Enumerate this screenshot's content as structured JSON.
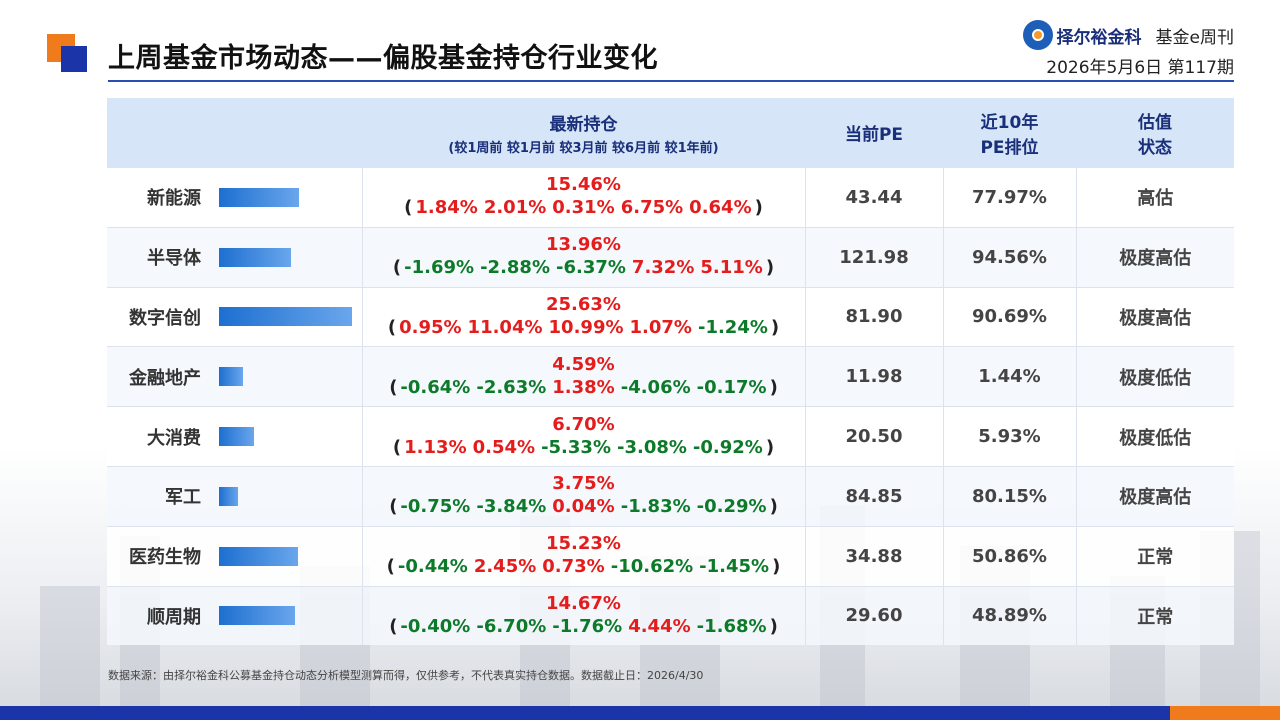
{
  "header": {
    "title": "上周基金市场动态——偏股基金持仓行业变化",
    "brand_name": "择尔裕金科",
    "brand_issue": "基金e周刊",
    "date_issue": "2026年5月6日  第117期",
    "logo_icon": "brand-circle-icon",
    "accent_orange": "#f07b1c",
    "accent_blue": "#1b34a8"
  },
  "table": {
    "headers": {
      "holding": "最新持仓",
      "holding_sub": "(较1周前  较1月前  较3月前  较6月前 较1年前)",
      "pe": "当前PE",
      "rank_l1": "近10年",
      "rank_l2": "PE排位",
      "status_l1": "估值",
      "status_l2": "状态"
    },
    "rows": [
      {
        "name": "新能源",
        "bar": 15.46,
        "holding": "15.46%",
        "changes": [
          "1.84%",
          "2.01%",
          "0.31%",
          "6.75%",
          "0.64%"
        ],
        "pe": "43.44",
        "rank": "77.97%",
        "status": "高估",
        "status_class": "st-hi"
      },
      {
        "name": "半导体",
        "bar": 13.96,
        "holding": "13.96%",
        "changes": [
          "-1.69%",
          "-2.88%",
          "-6.37%",
          "7.32%",
          "5.11%"
        ],
        "pe": "121.98",
        "rank": "94.56%",
        "status": "极度高估",
        "status_class": "st-xhi"
      },
      {
        "name": "数字信创",
        "bar": 25.63,
        "holding": "25.63%",
        "changes": [
          "0.95%",
          "11.04%",
          "10.99%",
          "1.07%",
          "-1.24%"
        ],
        "pe": "81.90",
        "rank": "90.69%",
        "status": "极度高估",
        "status_class": "st-xhi"
      },
      {
        "name": "金融地产",
        "bar": 4.59,
        "holding": "4.59%",
        "changes": [
          "-0.64%",
          "-2.63%",
          "1.38%",
          "-4.06%",
          "-0.17%"
        ],
        "pe": "11.98",
        "rank": "1.44%",
        "status": "极度低估",
        "status_class": "st-xlo"
      },
      {
        "name": "大消费",
        "bar": 6.7,
        "holding": "6.70%",
        "changes": [
          "1.13%",
          "0.54%",
          "-5.33%",
          "-3.08%",
          "-0.92%"
        ],
        "pe": "20.50",
        "rank": "5.93%",
        "status": "极度低估",
        "status_class": "st-xlo"
      },
      {
        "name": "军工",
        "bar": 3.75,
        "holding": "3.75%",
        "changes": [
          "-0.75%",
          "-3.84%",
          "0.04%",
          "-1.83%",
          "-0.29%"
        ],
        "pe": "84.85",
        "rank": "80.15%",
        "status": "极度高估",
        "status_class": "st-xhi"
      },
      {
        "name": "医药生物",
        "bar": 15.23,
        "holding": "15.23%",
        "changes": [
          "-0.44%",
          "2.45%",
          "0.73%",
          "-10.62%",
          "-1.45%"
        ],
        "pe": "34.88",
        "rank": "50.86%",
        "status": "正常",
        "status_class": "st-norm"
      },
      {
        "name": "顺周期",
        "bar": 14.67,
        "holding": "14.67%",
        "changes": [
          "-0.40%",
          "-6.70%",
          "-1.76%",
          "4.44%",
          "-1.68%"
        ],
        "pe": "29.60",
        "rank": "48.89%",
        "status": "正常",
        "status_class": "st-norm"
      }
    ]
  },
  "footer": {
    "source": "数据来源：由择尔裕金科公募基金持仓动态分析模型测算而得，仅供参考，不代表真实持仓数据。数据截止日：2026/4/30"
  }
}
